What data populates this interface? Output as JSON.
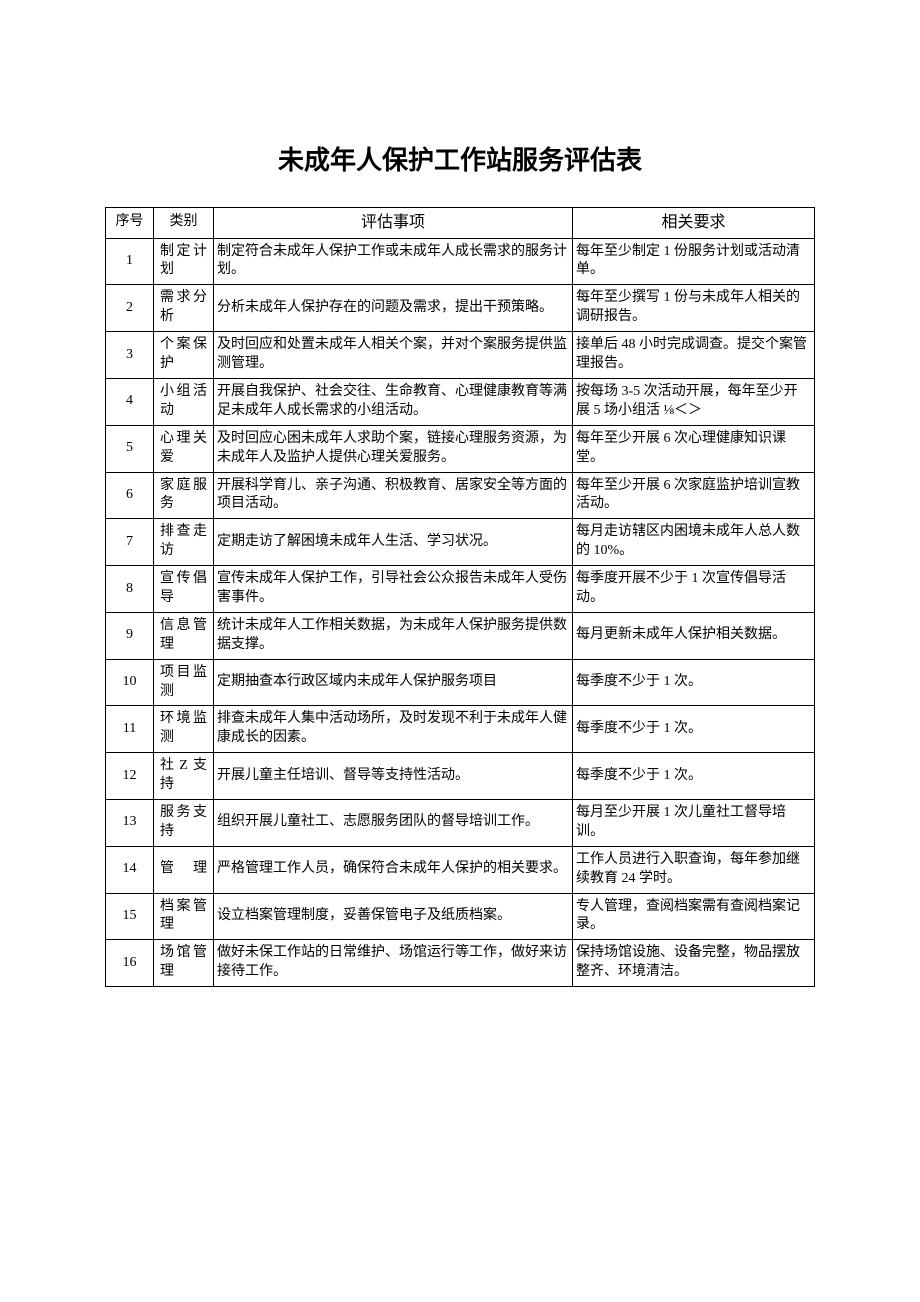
{
  "title": "未成年人保护工作站服务评估表",
  "headers": {
    "seq": "序号",
    "category": "类别",
    "item": "评估事项",
    "requirement": "相关要求"
  },
  "rows": [
    {
      "seq": "1",
      "category": "制定计划",
      "item": "制定符合未成年人保护工作或未成年人成长需求的服务计划。",
      "requirement": "每年至少制定 1 份服务计划或活动清单。"
    },
    {
      "seq": "2",
      "category": "需求分析",
      "item": "分析未成年人保护存在的问题及需求，提出干预策略。",
      "requirement": "每年至少撰写 1 份与未成年人相关的调研报告。"
    },
    {
      "seq": "3",
      "category": "个案保护",
      "item": "及时回应和处置未成年人相关个案，并对个案服务提供监测管理。",
      "requirement": "接单后 48 小时完成调查。提交个案管理报告。"
    },
    {
      "seq": "4",
      "category": "小组活动",
      "item": "开展自我保护、社会交往、生命教育、心理健康教育等满足未成年人成长需求的小组活动。",
      "requirement": "按每场 3-5 次活动开展，每年至少开展 5 场小组活\n⅛＜＞"
    },
    {
      "seq": "5",
      "category": "心理关爱",
      "item": "及时回应心困未成年人求助个案，链接心理服务资源，为未成年人及监护人提供心理关爱服务。",
      "requirement": "每年至少开展 6 次心理健康知识课堂。"
    },
    {
      "seq": "6",
      "category": "家庭服务",
      "item": "开展科学育儿、亲子沟通、积极教育、居家安全等方面的项目活动。",
      "requirement": "每年至少开展 6 次家庭监护培训宣教活动。"
    },
    {
      "seq": "7",
      "category": "排查走访",
      "item": "定期走访了解困境未成年人生活、学习状况。",
      "requirement": "每月走访辖区内困境未成年人总人数的 10%。"
    },
    {
      "seq": "8",
      "category": "宣传倡导",
      "item": "宣传未成年人保护工作，引导社会公众报告未成年人受伤害事件。",
      "requirement": "每季度开展不少于 1 次宣传倡导活动。"
    },
    {
      "seq": "9",
      "category": "信息管理",
      "item": "统计未成年人工作相关数据，为未成年人保护服务提供数据支撑。",
      "requirement": "每月更新未成年人保护相关数据。"
    },
    {
      "seq": "10",
      "category": "项目监测",
      "item": "定期抽查本行政区域内未成年人保护服务项目",
      "requirement": "每季度不少于 1 次。"
    },
    {
      "seq": "11",
      "category": "环境监测",
      "item": "排查未成年人集中活动场所，及时发现不利于未成年人健康成长的因素。",
      "requirement": "每季度不少于 1 次。"
    },
    {
      "seq": "12",
      "category": "社Z支持",
      "item": "开展儿童主任培训、督导等支持性活动。",
      "requirement": "每季度不少于 1 次。"
    },
    {
      "seq": "13",
      "category": "服务支持",
      "item": "组织开展儿童社工、志愿服务团队的督导培训工作。",
      "requirement": "每月至少开展 1 次儿童社工督导培训。"
    },
    {
      "seq": "14",
      "category": "管理",
      "item": "严格管理工作人员，确保符合未成年人保护的相关要求。",
      "requirement": "工作人员进行入职查询，每年参加继续教育 24 学时。"
    },
    {
      "seq": "15",
      "category": "档案管理",
      "item": "设立档案管理制度，妥善保管电子及纸质档案。",
      "requirement": "专人管理，查阅档案需有查阅档案记录。"
    },
    {
      "seq": "16",
      "category": "场馆管理",
      "item": "做好未保工作站的日常维护、场馆运行等工作，做好来访接待工作。",
      "requirement": "保持场馆设施、设备完整，物品摆放整齐、环境清洁。"
    }
  ]
}
